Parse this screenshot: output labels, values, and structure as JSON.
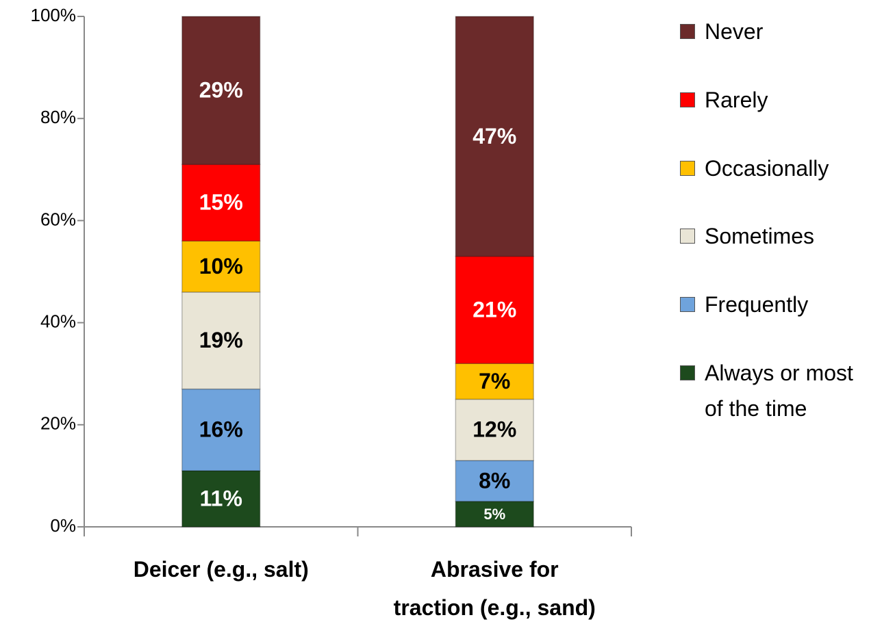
{
  "chart_data": {
    "type": "stacked_bar",
    "categories": [
      "Deicer (e.g., salt)",
      "Abrasive for traction (e.g., sand)"
    ],
    "series": [
      {
        "name": "Always or most of the time",
        "color": "#1d4a1d",
        "values": [
          11,
          5
        ],
        "value_labels": [
          "11%",
          "5%"
        ]
      },
      {
        "name": "Frequently",
        "color": "#6fa3dc",
        "values": [
          16,
          8
        ],
        "value_labels": [
          "16%",
          "8%"
        ]
      },
      {
        "name": "Sometimes",
        "color": "#e9e5d6",
        "values": [
          19,
          12
        ],
        "value_labels": [
          "19%",
          "12%"
        ]
      },
      {
        "name": "Occasionally",
        "color": "#ffc000",
        "values": [
          10,
          7
        ],
        "value_labels": [
          "10%",
          "7%"
        ]
      },
      {
        "name": "Rarely",
        "color": "#ff0000",
        "values": [
          15,
          21
        ],
        "value_labels": [
          "15%",
          "21%"
        ]
      },
      {
        "name": "Never",
        "color": "#6b2a2a",
        "values": [
          29,
          47
        ],
        "value_labels": [
          "29%",
          "47%"
        ]
      }
    ],
    "ylim": [
      0,
      100
    ],
    "yticks": [
      {
        "value": 0,
        "label": "0%"
      },
      {
        "value": 20,
        "label": "20%"
      },
      {
        "value": 40,
        "label": "40%"
      },
      {
        "value": 60,
        "label": "60%"
      },
      {
        "value": 80,
        "label": "80%"
      },
      {
        "value": 100,
        "label": "100%"
      }
    ],
    "legend": "right"
  }
}
